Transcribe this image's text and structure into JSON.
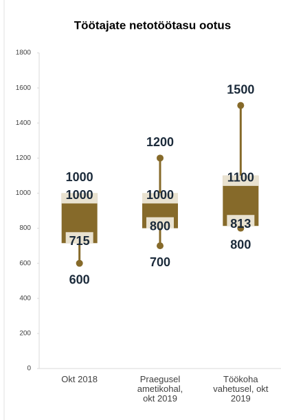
{
  "chart_data": {
    "type": "box",
    "title": "Töötajate netotöötasu ootus",
    "categories": [
      "Okt 2018",
      "Praegusel ametikohal, okt 2019",
      "Töökoha vahetusel, okt 2019"
    ],
    "min": [
      600,
      700,
      800
    ],
    "q1": [
      715,
      800,
      813
    ],
    "q3": [
      1000,
      1000,
      1100
    ],
    "max": [
      1000,
      1200,
      1500
    ],
    "color": "#866a2a",
    "ylim": [
      0,
      1800
    ],
    "yticks": [
      0,
      200,
      400,
      600,
      800,
      1000,
      1200,
      1400,
      1600,
      1800
    ]
  }
}
